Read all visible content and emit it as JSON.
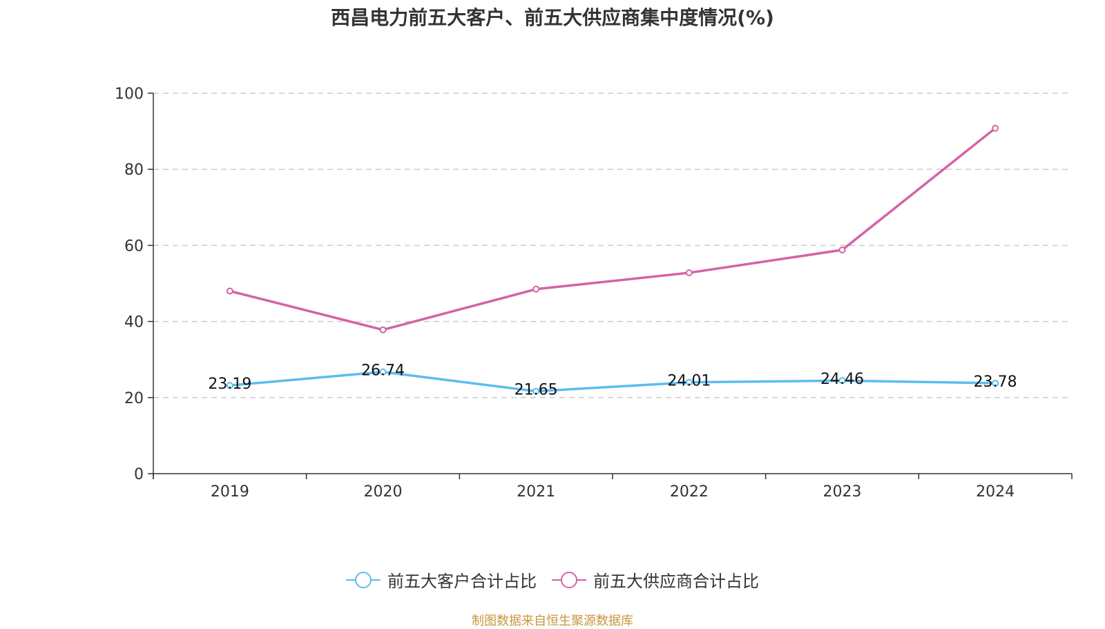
{
  "chart_data": {
    "type": "line",
    "title": "西昌电力前五大客户、前五大供应商集中度情况(%)",
    "categories": [
      "2019",
      "2020",
      "2021",
      "2022",
      "2023",
      "2024"
    ],
    "ylim": [
      0,
      100
    ],
    "yticks": [
      0,
      20,
      40,
      60,
      80,
      100
    ],
    "ytick_labels": [
      "0",
      "20",
      "40",
      "60",
      "80",
      "100"
    ],
    "grid": true,
    "legend_position": "bottom-center",
    "series": [
      {
        "name": "前五大客户合计占比",
        "color": "#5bbcee",
        "values": [
          23.19,
          26.74,
          21.65,
          24.01,
          24.46,
          23.78
        ],
        "labels": [
          "23.19",
          "26.74",
          "21.65",
          "24.01",
          "24.46",
          "23.78"
        ],
        "show_labels": true
      },
      {
        "name": "前五大供应商合计占比",
        "color": "#d462a6",
        "values": [
          48.0,
          37.8,
          48.5,
          52.8,
          58.8,
          90.8
        ],
        "show_labels": false
      }
    ]
  },
  "source": "制图数据来自恒生聚源数据库"
}
